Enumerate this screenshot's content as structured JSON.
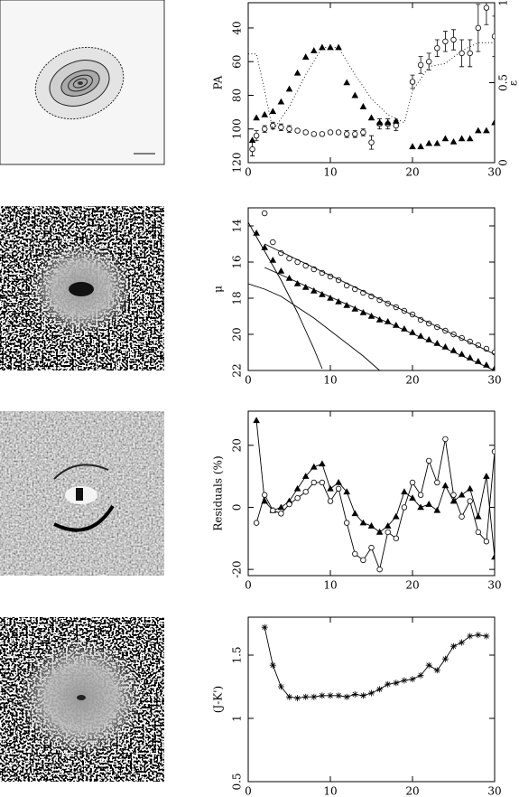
{
  "chart_data": [
    {
      "type": "scatter",
      "ylabel": "PA",
      "y2label": "ε",
      "xlim": [
        0,
        30
      ],
      "xticks": [
        0,
        10,
        20,
        30
      ],
      "ylim": [
        120,
        25
      ],
      "yticks": [
        40,
        60,
        80,
        100,
        120
      ],
      "y2lim": [
        0,
        1
      ],
      "y2ticks": [
        0,
        0.5,
        1
      ],
      "series": [
        {
          "marker": "circle",
          "line": "none",
          "color": "#000000",
          "x": [
            0.5,
            1,
            2,
            3,
            4,
            5,
            6,
            7,
            8,
            9,
            10,
            11,
            12,
            13,
            14,
            15,
            16,
            17,
            18,
            20,
            21,
            22,
            23,
            24,
            25,
            26,
            27,
            28,
            29,
            30
          ],
          "values": [
            112,
            104,
            100,
            98,
            99,
            100,
            101,
            102,
            103,
            103,
            102,
            102,
            103,
            103,
            102,
            108,
            97,
            97,
            98,
            72,
            62,
            60,
            52,
            48,
            47,
            55,
            55,
            40,
            28,
            45
          ],
          "errors": [
            4,
            3,
            2,
            2,
            2,
            2,
            1,
            1,
            1,
            1,
            1,
            1,
            2,
            2,
            2,
            4,
            3,
            3,
            3,
            4,
            5,
            5,
            5,
            6,
            6,
            8,
            8,
            14,
            10,
            12
          ]
        },
        {
          "marker": "triangle",
          "line": "none",
          "color": "#000000",
          "axis": "y2",
          "x": [
            0.5,
            1,
            2,
            3,
            4,
            5,
            6,
            7,
            8,
            9,
            10,
            11,
            12,
            13,
            14,
            15,
            16,
            17,
            18,
            20,
            21,
            22,
            23,
            24,
            25,
            26,
            27,
            28,
            29,
            30
          ],
          "values": [
            0.14,
            0.28,
            0.3,
            0.32,
            0.38,
            0.46,
            0.56,
            0.66,
            0.7,
            0.72,
            0.72,
            0.72,
            0.5,
            0.42,
            0.35,
            0.28,
            0.25,
            0.25,
            0.26,
            0.1,
            0.1,
            0.12,
            0.12,
            0.15,
            0.13,
            0.15,
            0.15,
            0.2,
            0.2,
            0.25
          ]
        },
        {
          "marker": "none",
          "line": "dotted",
          "color": "#000000",
          "axis": "y2",
          "x": [
            0,
            1,
            2,
            3,
            5,
            7,
            9,
            11,
            13,
            15,
            17,
            19,
            20,
            22,
            24,
            26,
            28,
            30
          ],
          "values": [
            0.68,
            0.68,
            0.45,
            0.2,
            0.35,
            0.55,
            0.72,
            0.72,
            0.55,
            0.4,
            0.3,
            0.25,
            0.45,
            0.6,
            0.62,
            0.7,
            0.75,
            0.75
          ]
        }
      ]
    },
    {
      "type": "scatter",
      "ylabel": "μ",
      "xlim": [
        0,
        30
      ],
      "xticks": [
        0,
        10,
        20,
        30
      ],
      "ylim": [
        22,
        13
      ],
      "yticks": [
        14,
        16,
        18,
        20,
        22
      ],
      "series": [
        {
          "marker": "circle",
          "line": "none",
          "color": "#000000",
          "x": [
            2,
            3,
            4,
            5,
            6,
            7,
            8,
            9,
            10,
            11,
            12,
            13,
            14,
            15,
            16,
            17,
            18,
            19,
            20,
            21,
            22,
            23,
            24,
            25,
            26,
            27,
            28,
            29,
            30
          ],
          "values": [
            13.3,
            14.9,
            15.5,
            15.8,
            16.0,
            16.2,
            16.4,
            16.6,
            16.8,
            17.0,
            17.3,
            17.5,
            17.7,
            17.9,
            18.1,
            18.3,
            18.5,
            18.7,
            18.9,
            19.2,
            19.4,
            19.6,
            19.8,
            20.0,
            20.2,
            20.4,
            20.6,
            20.8,
            21.0
          ]
        },
        {
          "marker": "triangle",
          "line": "none",
          "color": "#000000",
          "x": [
            1,
            2,
            3,
            4,
            5,
            6,
            7,
            8,
            9,
            10,
            11,
            12,
            13,
            14,
            15,
            16,
            17,
            18,
            19,
            20,
            21,
            22,
            23,
            24,
            25,
            26,
            27,
            28,
            29,
            30
          ],
          "values": [
            14.4,
            15.2,
            15.9,
            16.5,
            16.9,
            17.2,
            17.4,
            17.6,
            17.8,
            18.0,
            18.2,
            18.4,
            18.6,
            18.8,
            19.0,
            19.2,
            19.3,
            19.5,
            19.7,
            19.9,
            20.1,
            20.3,
            20.5,
            20.7,
            20.9,
            21.1,
            21.3,
            21.5,
            21.7,
            21.9
          ]
        },
        {
          "marker": "none",
          "line": "solid",
          "color": "#000000",
          "x": [
            2,
            30
          ],
          "values": [
            15.0,
            21.1
          ]
        },
        {
          "marker": "none",
          "line": "solid",
          "color": "#000000",
          "x": [
            2,
            30
          ],
          "values": [
            16.3,
            22.0
          ]
        },
        {
          "marker": "none",
          "line": "solid",
          "color": "#000000",
          "x": [
            0,
            1,
            2,
            3,
            4,
            5,
            6,
            7,
            8,
            9
          ],
          "values": [
            13.8,
            14.6,
            15.4,
            16.2,
            17.0,
            17.9,
            18.8,
            19.8,
            20.8,
            21.9
          ]
        },
        {
          "marker": "none",
          "line": "solid",
          "color": "#000000",
          "x": [
            0,
            2,
            4,
            6,
            8,
            10,
            12,
            14,
            16
          ],
          "values": [
            17.2,
            17.5,
            17.9,
            18.5,
            19.1,
            19.8,
            20.5,
            21.2,
            22.0
          ]
        }
      ]
    },
    {
      "type": "scatter",
      "ylabel": "Residuals (%)",
      "xlim": [
        0,
        30
      ],
      "xticks": [
        0,
        10,
        20,
        30
      ],
      "ylim": [
        -22,
        31
      ],
      "yticks": [
        -20,
        0,
        20
      ],
      "series": [
        {
          "marker": "triangle",
          "line": "solid",
          "color": "#000000",
          "x": [
            1,
            2,
            3,
            4,
            5,
            6,
            7,
            8,
            9,
            10,
            11,
            12,
            13,
            14,
            15,
            16,
            17,
            18,
            19,
            20,
            21,
            22,
            23,
            24,
            25,
            26,
            27,
            28,
            29,
            30
          ],
          "values": [
            28,
            2,
            -1,
            0,
            2,
            6,
            10,
            13,
            14,
            6,
            8,
            5,
            -2,
            -5,
            -6,
            -8,
            -6,
            -3,
            5,
            3,
            0,
            1,
            -1,
            7,
            2,
            4,
            6,
            -3,
            10,
            -16
          ]
        },
        {
          "marker": "circle",
          "line": "solid",
          "color": "#000000",
          "x": [
            1,
            2,
            3,
            4,
            5,
            6,
            7,
            8,
            9,
            10,
            11,
            12,
            13,
            14,
            15,
            16,
            17,
            18,
            19,
            20,
            21,
            22,
            23,
            24,
            25,
            26,
            27,
            28,
            29,
            30
          ],
          "values": [
            -5,
            4,
            -1,
            -2,
            1,
            3,
            5,
            8,
            8,
            2,
            6,
            -5,
            -15,
            -17,
            -13,
            -20,
            -8,
            -10,
            0,
            8,
            4,
            15,
            8,
            22,
            4,
            -3,
            2,
            -8,
            -11,
            18
          ]
        }
      ]
    },
    {
      "type": "scatter",
      "ylabel": "(J-K')",
      "xlim": [
        0,
        30
      ],
      "xticks": [
        0,
        10,
        20,
        30
      ],
      "ylim": [
        0.5,
        1.8
      ],
      "yticks": [
        0.5,
        1,
        1.5
      ],
      "series": [
        {
          "marker": "star",
          "line": "solid",
          "color": "#000000",
          "x": [
            2,
            3,
            4,
            5,
            6,
            7,
            8,
            9,
            10,
            11,
            12,
            13,
            14,
            15,
            16,
            17,
            18,
            19,
            20,
            21,
            22,
            23,
            24,
            25,
            26,
            27,
            28,
            29
          ],
          "values": [
            1.72,
            1.42,
            1.25,
            1.17,
            1.16,
            1.17,
            1.17,
            1.18,
            1.18,
            1.18,
            1.17,
            1.19,
            1.18,
            1.2,
            1.23,
            1.27,
            1.28,
            1.3,
            1.31,
            1.34,
            1.42,
            1.38,
            1.47,
            1.57,
            1.6,
            1.65,
            1.66,
            1.65
          ]
        }
      ]
    }
  ]
}
